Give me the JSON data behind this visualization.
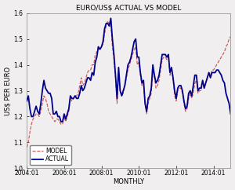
{
  "title": "EURO/US$ ACTUAL VS MODEL",
  "xlabel": "MONTHLY",
  "ylabel": "US$ PER EURO",
  "ylim": [
    1.0,
    1.6
  ],
  "yticks": [
    1.0,
    1.1,
    1.2,
    1.3,
    1.4,
    1.5,
    1.6
  ],
  "xtick_labels": [
    "2004:01",
    "2006:01",
    "2008:01",
    "2010:01",
    "2012:01",
    "2014:01"
  ],
  "actual_color": "#00008B",
  "model_color": "#C85050",
  "background_color": "#F0EEEE",
  "actual_label": "ACTUAL",
  "model_label": "MODEL",
  "actual_linewidth": 1.3,
  "model_linewidth": 0.8,
  "model_linestyle": "--",
  "title_fontsize": 6.5,
  "axis_label_fontsize": 6.0,
  "tick_fontsize": 5.5,
  "legend_fontsize": 5.5,
  "actual": [
    1.26,
    1.28,
    1.23,
    1.2,
    1.2,
    1.22,
    1.24,
    1.22,
    1.21,
    1.25,
    1.3,
    1.34,
    1.31,
    1.3,
    1.29,
    1.29,
    1.27,
    1.21,
    1.21,
    1.22,
    1.2,
    1.2,
    1.18,
    1.18,
    1.21,
    1.19,
    1.21,
    1.23,
    1.28,
    1.27,
    1.27,
    1.28,
    1.27,
    1.27,
    1.29,
    1.32,
    1.3,
    1.31,
    1.33,
    1.35,
    1.35,
    1.34,
    1.37,
    1.36,
    1.41,
    1.43,
    1.47,
    1.46,
    1.47,
    1.49,
    1.54,
    1.56,
    1.56,
    1.55,
    1.58,
    1.5,
    1.44,
    1.36,
    1.27,
    1.39,
    1.3,
    1.28,
    1.3,
    1.32,
    1.36,
    1.4,
    1.41,
    1.43,
    1.46,
    1.49,
    1.5,
    1.43,
    1.43,
    1.37,
    1.33,
    1.34,
    1.25,
    1.22,
    1.27,
    1.28,
    1.31,
    1.4,
    1.36,
    1.33,
    1.34,
    1.36,
    1.4,
    1.44,
    1.44,
    1.44,
    1.43,
    1.44,
    1.37,
    1.39,
    1.35,
    1.3,
    1.27,
    1.31,
    1.32,
    1.32,
    1.3,
    1.26,
    1.23,
    1.24,
    1.29,
    1.3,
    1.28,
    1.32,
    1.36,
    1.36,
    1.3,
    1.31,
    1.31,
    1.34,
    1.31,
    1.33,
    1.35,
    1.37,
    1.35,
    1.37,
    1.37,
    1.37,
    1.38,
    1.38,
    1.37,
    1.36,
    1.34,
    1.33,
    1.29,
    1.27,
    1.25,
    1.21
  ],
  "model": [
    1.08,
    1.1,
    1.14,
    1.17,
    1.19,
    1.2,
    1.21,
    1.21,
    1.2,
    1.22,
    1.25,
    1.28,
    1.27,
    1.25,
    1.22,
    1.21,
    1.2,
    1.19,
    1.18,
    1.19,
    1.19,
    1.18,
    1.17,
    1.17,
    1.2,
    1.18,
    1.2,
    1.22,
    1.27,
    1.26,
    1.27,
    1.28,
    1.28,
    1.29,
    1.32,
    1.35,
    1.32,
    1.33,
    1.35,
    1.37,
    1.38,
    1.38,
    1.4,
    1.4,
    1.44,
    1.45,
    1.47,
    1.46,
    1.47,
    1.48,
    1.52,
    1.55,
    1.57,
    1.56,
    1.56,
    1.47,
    1.42,
    1.35,
    1.25,
    1.36,
    1.3,
    1.28,
    1.29,
    1.32,
    1.35,
    1.38,
    1.4,
    1.42,
    1.44,
    1.46,
    1.47,
    1.4,
    1.41,
    1.36,
    1.32,
    1.33,
    1.25,
    1.21,
    1.25,
    1.27,
    1.29,
    1.38,
    1.35,
    1.31,
    1.32,
    1.34,
    1.38,
    1.42,
    1.43,
    1.43,
    1.42,
    1.43,
    1.36,
    1.38,
    1.34,
    1.28,
    1.26,
    1.3,
    1.31,
    1.31,
    1.29,
    1.25,
    1.22,
    1.23,
    1.27,
    1.29,
    1.27,
    1.29,
    1.33,
    1.34,
    1.29,
    1.3,
    1.3,
    1.33,
    1.31,
    1.33,
    1.35,
    1.37,
    1.36,
    1.38,
    1.38,
    1.39,
    1.4,
    1.41,
    1.42,
    1.43,
    1.44,
    1.45,
    1.47,
    1.48,
    1.5,
    1.51
  ],
  "tick_positions": [
    0,
    24,
    48,
    72,
    96,
    120
  ]
}
